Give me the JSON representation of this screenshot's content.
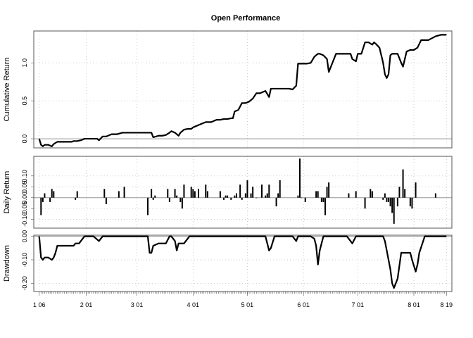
{
  "chart_data": {
    "title": "Open Performance",
    "x_ticks": [
      "1 06",
      "2 01",
      "3 01",
      "4 01",
      "5 01",
      "6 01",
      "7 01",
      "8 01",
      "8 19"
    ],
    "x_tick_days": [
      0,
      26,
      54,
      85,
      115,
      146,
      176,
      207,
      225
    ],
    "panels": [
      {
        "type": "line",
        "ylabel": "Cumulative Return",
        "ylim": [
          -0.12,
          1.42
        ],
        "y_ticks": [
          0.0,
          0.5,
          1.0
        ],
        "y_tick_labels": [
          "0.0",
          "0.5",
          "1.0"
        ],
        "x": [
          0,
          1,
          2,
          3,
          5,
          6,
          7,
          8,
          10,
          12,
          14,
          16,
          18,
          19,
          21,
          23,
          25,
          26,
          28,
          30,
          32,
          33,
          35,
          37,
          38,
          40,
          43,
          46,
          50,
          55,
          60,
          62,
          63,
          66,
          68,
          70,
          72,
          73,
          75,
          77,
          78,
          80,
          82,
          84,
          85,
          86,
          88,
          90,
          92,
          95,
          98,
          100,
          102,
          104,
          106,
          107,
          108,
          110,
          112,
          114,
          116,
          118,
          120,
          121,
          122,
          125,
          127,
          128,
          130,
          132,
          135,
          138,
          140,
          142,
          143,
          145,
          148,
          150,
          152,
          154,
          155,
          157,
          159,
          160,
          162,
          164,
          165,
          168,
          170,
          172,
          173,
          175,
          176,
          178,
          180,
          182,
          184,
          185,
          186,
          188,
          190,
          191,
          192,
          193,
          194,
          195,
          196,
          198,
          200,
          201,
          203,
          205,
          207,
          209,
          211,
          213,
          215,
          219,
          222,
          225
        ],
        "y": [
          0.0,
          -0.08,
          -0.1,
          -0.08,
          -0.08,
          -0.09,
          -0.1,
          -0.07,
          -0.04,
          -0.04,
          -0.04,
          -0.04,
          -0.04,
          -0.03,
          -0.03,
          -0.02,
          0.0,
          0.0,
          0.0,
          0.0,
          0.0,
          -0.02,
          0.03,
          0.03,
          0.04,
          0.06,
          0.06,
          0.08,
          0.08,
          0.08,
          0.08,
          0.08,
          0.02,
          0.04,
          0.04,
          0.05,
          0.08,
          0.1,
          0.08,
          0.04,
          0.08,
          0.12,
          0.13,
          0.13,
          0.15,
          0.16,
          0.18,
          0.2,
          0.22,
          0.22,
          0.25,
          0.25,
          0.26,
          0.26,
          0.27,
          0.27,
          0.36,
          0.38,
          0.47,
          0.47,
          0.49,
          0.53,
          0.6,
          0.6,
          0.6,
          0.63,
          0.55,
          0.66,
          0.66,
          0.66,
          0.66,
          0.66,
          0.65,
          0.7,
          0.99,
          0.99,
          0.99,
          1.0,
          1.08,
          1.12,
          1.12,
          1.1,
          1.05,
          0.88,
          1.0,
          1.12,
          1.12,
          1.12,
          1.12,
          1.12,
          1.05,
          1.02,
          1.12,
          1.12,
          1.27,
          1.27,
          1.24,
          1.27,
          1.25,
          1.2,
          1.0,
          0.85,
          0.8,
          0.85,
          1.1,
          1.12,
          1.12,
          1.12,
          1.0,
          0.95,
          1.15,
          1.17,
          1.17,
          1.2,
          1.3,
          1.3,
          1.3,
          1.35,
          1.37,
          1.37
        ]
      },
      {
        "type": "bar",
        "ylabel": "Daily Return",
        "ylim": [
          -0.14,
          0.19
        ],
        "y_ticks": [
          -0.1,
          -0.05,
          0.0,
          0.05,
          0.1
        ],
        "y_tick_labels": [
          "-0.10",
          "-0.05",
          "0.00",
          "0.05",
          "0.10"
        ],
        "x": [
          1,
          2,
          3,
          6,
          7,
          8,
          20,
          21,
          36,
          37,
          44,
          47,
          60,
          62,
          63,
          64,
          71,
          72,
          75,
          76,
          78,
          79,
          80,
          84,
          85,
          86,
          88,
          92,
          93,
          100,
          102,
          103,
          104,
          106,
          108,
          109,
          111,
          112,
          114,
          115,
          117,
          118,
          120,
          123,
          125,
          126,
          127,
          131,
          132,
          133,
          143,
          144,
          145,
          147,
          153,
          154,
          156,
          157,
          158,
          159,
          160,
          171,
          175,
          180,
          183,
          184,
          190,
          191,
          192,
          193,
          194,
          195,
          196,
          198,
          199,
          201,
          202,
          205,
          206,
          208,
          219
        ],
        "values": [
          -0.08,
          -0.02,
          0.02,
          -0.02,
          0.04,
          0.03,
          -0.01,
          0.03,
          0.04,
          -0.03,
          0.03,
          0.05,
          -0.08,
          0.04,
          -0.01,
          0.01,
          0.04,
          -0.02,
          0.04,
          0.01,
          -0.02,
          -0.05,
          0.06,
          0.05,
          0.04,
          0.03,
          0.04,
          0.06,
          0.03,
          0.03,
          -0.01,
          0.01,
          0.01,
          -0.01,
          0.01,
          0.02,
          0.06,
          -0.01,
          0.02,
          0.08,
          0.02,
          0.05,
          0.0,
          0.06,
          0.01,
          0.02,
          0.06,
          -0.04,
          0.02,
          0.08,
          0.01,
          0.18,
          0.0,
          -0.02,
          0.03,
          0.03,
          -0.02,
          -0.02,
          -0.08,
          0.05,
          0.07,
          0.02,
          0.03,
          -0.05,
          0.04,
          0.03,
          -0.01,
          0.02,
          -0.02,
          -0.02,
          -0.04,
          -0.07,
          -0.12,
          -0.04,
          0.05,
          0.13,
          0.04,
          -0.04,
          -0.05,
          0.07,
          0.02
        ]
      },
      {
        "type": "line",
        "ylabel": "Drawdown",
        "ylim": [
          -0.235,
          0.005
        ],
        "y_ticks": [
          0.0,
          -0.1,
          -0.2
        ],
        "y_tick_labels": [
          "0.00",
          "-0.10",
          "-0.20"
        ],
        "x": [
          0,
          1,
          2,
          3,
          5,
          7,
          8,
          9,
          10,
          13,
          16,
          19,
          20,
          22,
          25,
          26,
          28,
          30,
          33,
          35,
          36,
          38,
          40,
          43,
          46,
          50,
          55,
          60,
          61,
          62,
          63,
          66,
          68,
          70,
          72,
          73,
          75,
          76,
          77,
          80,
          83,
          85,
          87,
          90,
          95,
          100,
          105,
          110,
          115,
          118,
          120,
          123,
          125,
          127,
          128,
          130,
          132,
          136,
          140,
          142,
          143,
          145,
          148,
          150,
          152,
          153,
          154,
          155,
          157,
          160,
          165,
          170,
          172,
          173,
          175,
          180,
          185,
          190,
          191,
          192,
          193,
          194,
          195,
          196,
          198,
          200,
          202,
          204,
          205,
          206,
          208,
          209,
          210,
          213,
          216,
          219,
          222,
          225
        ],
        "y": [
          0.0,
          -0.09,
          -0.1,
          -0.09,
          -0.09,
          -0.1,
          -0.09,
          -0.07,
          -0.04,
          -0.04,
          -0.04,
          -0.04,
          -0.03,
          -0.03,
          0.0,
          0.0,
          0.0,
          0.0,
          -0.02,
          0.0,
          0.0,
          0.0,
          0.0,
          0.0,
          0.0,
          0.0,
          0.0,
          0.0,
          -0.07,
          -0.07,
          -0.04,
          -0.03,
          -0.03,
          -0.03,
          0.0,
          0.0,
          -0.02,
          -0.06,
          -0.03,
          -0.03,
          0.0,
          0.0,
          0.0,
          0.0,
          0.0,
          0.0,
          0.0,
          0.0,
          0.0,
          0.0,
          0.0,
          0.0,
          0.0,
          -0.06,
          -0.05,
          0.0,
          0.0,
          0.0,
          0.0,
          -0.02,
          0.0,
          0.0,
          0.0,
          0.0,
          -0.01,
          -0.04,
          -0.12,
          -0.06,
          0.0,
          0.0,
          0.0,
          0.0,
          -0.02,
          -0.03,
          0.0,
          0.0,
          0.0,
          0.0,
          -0.02,
          -0.06,
          -0.1,
          -0.14,
          -0.2,
          -0.22,
          -0.18,
          -0.07,
          -0.07,
          -0.07,
          -0.07,
          -0.1,
          -0.15,
          -0.12,
          -0.07,
          0.0,
          0.0,
          0.0,
          0.0,
          0.0
        ]
      }
    ]
  }
}
